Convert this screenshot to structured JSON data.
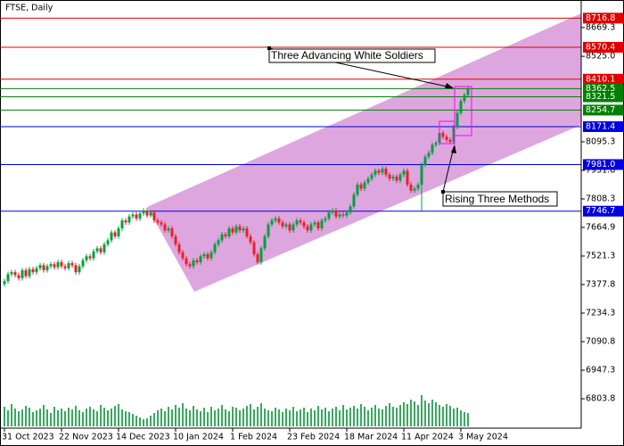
{
  "chart_data": {
    "type": "candlestick",
    "title": "FTSE, Daily",
    "categories": [
      "31 Oct 2023",
      null,
      null,
      null,
      null,
      null,
      null,
      null,
      null,
      null,
      null,
      null,
      null,
      null,
      null,
      null,
      "22 Nov 2023",
      null,
      null,
      null,
      null,
      null,
      null,
      null,
      null,
      null,
      null,
      null,
      null,
      null,
      null,
      null,
      "14 Dec 2023",
      null,
      null,
      null,
      null,
      null,
      null,
      null,
      null,
      null,
      null,
      null,
      null,
      null,
      null,
      null,
      "10 Jan 2024",
      null,
      null,
      null,
      null,
      null,
      null,
      null,
      null,
      null,
      null,
      null,
      null,
      null,
      null,
      null,
      "1 Feb 2024",
      null,
      null,
      null,
      null,
      null,
      null,
      null,
      null,
      null,
      null,
      null,
      null,
      null,
      null,
      null,
      "23 Feb 2024",
      null,
      null,
      null,
      null,
      null,
      null,
      null,
      null,
      null,
      null,
      null,
      null,
      null,
      null,
      null,
      "18 Mar 2024",
      null,
      null,
      null,
      null,
      null,
      null,
      null,
      null,
      null,
      null,
      null,
      null,
      null,
      null,
      null,
      "11 Apr 2024",
      null,
      null,
      null,
      null,
      null,
      null,
      null,
      null,
      null,
      null,
      null,
      null,
      null,
      null,
      null,
      "3 May 2024",
      null,
      null
    ],
    "open": [
      7380,
      7395,
      7430,
      7440,
      7425,
      7410,
      7450,
      7420,
      7455,
      7440,
      7460,
      7475,
      7450,
      7470,
      7480,
      7465,
      7490,
      7470,
      7460,
      7485,
      7475,
      7440,
      7470,
      7500,
      7520,
      7510,
      7545,
      7560,
      7540,
      7580,
      7600,
      7640,
      7620,
      7660,
      7700,
      7690,
      7720,
      7730,
      7710,
      7735,
      7750,
      7725,
      7740,
      7700,
      7690,
      7680,
      7650,
      7660,
      7620,
      7580,
      7540,
      7510,
      7480,
      7470,
      7500,
      7490,
      7520,
      7530,
      7510,
      7540,
      7580,
      7600,
      7630,
      7620,
      7660,
      7640,
      7670,
      7650,
      7660,
      7620,
      7590,
      7530,
      7490,
      7560,
      7620,
      7680,
      7700,
      7710,
      7690,
      7670,
      7680,
      7650,
      7680,
      7700,
      7690,
      7670,
      7650,
      7680,
      7690,
      7660,
      7700,
      7710,
      7740,
      7750,
      7720,
      7730,
      7725,
      7740,
      7770,
      7830,
      7880,
      7860,
      7890,
      7910,
      7930,
      7950,
      7940,
      7960,
      7930,
      7910,
      7920,
      7900,
      7930,
      7950,
      7880,
      7850,
      7860,
      7880,
      7980,
      8020,
      8040,
      8080,
      8090,
      8140,
      8120,
      8105,
      8095,
      8170,
      8240,
      8300,
      8330
    ],
    "high": [
      7407,
      7442,
      7452,
      7452,
      7437,
      7462,
      7462,
      7467,
      7467,
      7472,
      7487,
      7487,
      7482,
      7492,
      7492,
      7502,
      7502,
      7482,
      7497,
      7497,
      7487,
      7482,
      7512,
      7532,
      7532,
      7557,
      7572,
      7572,
      7592,
      7612,
      7652,
      7652,
      7672,
      7712,
      7712,
      7732,
      7742,
      7742,
      7747,
      7762,
      7762,
      7752,
      7752,
      7712,
      7702,
      7692,
      7672,
      7672,
      7632,
      7592,
      7552,
      7522,
      7492,
      7512,
      7512,
      7532,
      7542,
      7542,
      7552,
      7592,
      7612,
      7642,
      7642,
      7672,
      7672,
      7682,
      7682,
      7672,
      7672,
      7632,
      7602,
      7542,
      7572,
      7632,
      7692,
      7712,
      7722,
      7722,
      7702,
      7692,
      7692,
      7692,
      7712,
      7712,
      7702,
      7682,
      7692,
      7702,
      7702,
      7712,
      7722,
      7752,
      7762,
      7762,
      7742,
      7742,
      7752,
      7782,
      7842,
      7892,
      7892,
      7902,
      7922,
      7942,
      7962,
      7962,
      7972,
      7972,
      7942,
      7932,
      7932,
      7942,
      7962,
      7962,
      7892,
      7872,
      7892,
      7992,
      8032,
      8052,
      8092,
      8102,
      8152,
      8152,
      8132,
      8117,
      8182,
      8252,
      8312,
      8342,
      8372
    ],
    "low": [
      7368,
      7383,
      7418,
      7413,
      7398,
      7398,
      7408,
      7408,
      7428,
      7428,
      7448,
      7438,
      7438,
      7458,
      7453,
      7453,
      7458,
      7448,
      7448,
      7463,
      7428,
      7428,
      7458,
      7488,
      7498,
      7498,
      7533,
      7528,
      7528,
      7568,
      7588,
      7608,
      7608,
      7648,
      7678,
      7678,
      7708,
      7698,
      7698,
      7723,
      7713,
      7713,
      7688,
      7678,
      7668,
      7638,
      7638,
      7608,
      7568,
      7528,
      7498,
      7468,
      7458,
      7458,
      7478,
      7478,
      7508,
      7498,
      7498,
      7528,
      7568,
      7588,
      7608,
      7608,
      7628,
      7628,
      7638,
      7638,
      7608,
      7578,
      7518,
      7478,
      7478,
      7548,
      7608,
      7668,
      7688,
      7678,
      7658,
      7658,
      7638,
      7638,
      7668,
      7678,
      7658,
      7638,
      7638,
      7668,
      7648,
      7648,
      7688,
      7698,
      7728,
      7708,
      7708,
      7713,
      7713,
      7728,
      7758,
      7818,
      7848,
      7848,
      7878,
      7898,
      7918,
      7928,
      7928,
      7918,
      7898,
      7898,
      7888,
      7888,
      7918,
      7868,
      7838,
      7838,
      7848,
      7750,
      7968,
      8008,
      8028,
      8068,
      8078,
      8108,
      8093,
      8083,
      8083,
      8158,
      8228,
      8288,
      8318
    ],
    "close": [
      7395,
      7430,
      7440,
      7425,
      7410,
      7450,
      7420,
      7455,
      7440,
      7460,
      7475,
      7450,
      7470,
      7480,
      7465,
      7490,
      7470,
      7460,
      7485,
      7475,
      7440,
      7470,
      7500,
      7520,
      7510,
      7545,
      7560,
      7540,
      7580,
      7600,
      7640,
      7620,
      7660,
      7700,
      7690,
      7720,
      7730,
      7710,
      7735,
      7750,
      7725,
      7740,
      7700,
      7690,
      7680,
      7650,
      7660,
      7620,
      7580,
      7540,
      7510,
      7480,
      7470,
      7500,
      7490,
      7520,
      7530,
      7510,
      7540,
      7580,
      7600,
      7630,
      7620,
      7660,
      7640,
      7670,
      7650,
      7660,
      7620,
      7590,
      7530,
      7490,
      7560,
      7620,
      7680,
      7700,
      7710,
      7690,
      7670,
      7680,
      7650,
      7680,
      7700,
      7690,
      7670,
      7650,
      7680,
      7690,
      7660,
      7700,
      7710,
      7740,
      7750,
      7720,
      7730,
      7725,
      7740,
      7770,
      7830,
      7880,
      7860,
      7890,
      7910,
      7930,
      7950,
      7940,
      7960,
      7930,
      7910,
      7920,
      7900,
      7930,
      7950,
      7880,
      7850,
      7860,
      7880,
      7980,
      8020,
      8040,
      8080,
      8090,
      8140,
      8120,
      8105,
      8095,
      8170,
      8240,
      8300,
      8330,
      8360
    ],
    "volume": [
      22,
      18,
      25,
      20,
      17,
      19,
      23,
      21,
      16,
      18,
      20,
      24,
      19,
      15,
      22,
      18,
      20,
      17,
      21,
      19,
      23,
      18,
      16,
      20,
      22,
      19,
      17,
      24,
      21,
      18,
      20,
      23,
      25,
      19,
      17,
      16,
      14,
      12,
      10,
      8,
      9,
      12,
      15,
      18,
      20,
      17,
      22,
      19,
      24,
      21,
      26,
      20,
      18,
      23,
      19,
      17,
      21,
      16,
      22,
      18,
      20,
      24,
      19,
      17,
      22,
      21,
      18,
      20,
      23,
      25,
      19,
      22,
      26,
      20,
      18,
      17,
      21,
      19,
      16,
      20,
      18,
      22,
      17,
      19,
      21,
      16,
      20,
      18,
      23,
      19,
      21,
      17,
      20,
      22,
      18,
      24,
      19,
      21,
      23,
      20,
      25,
      22,
      18,
      21,
      24,
      20,
      19,
      23,
      26,
      22,
      21,
      24,
      27,
      25,
      30,
      28,
      24,
      35,
      29,
      26,
      30,
      27,
      24,
      22,
      25,
      23,
      20,
      21,
      18,
      16,
      15
    ],
    "up_color": "#00a03c",
    "down_color": "#e8202a",
    "volume_color": "#3aa860",
    "ylim": [
      6656,
      8808
    ],
    "yticks": [
      8669.3,
      {
        "value": 8525,
        "label": "8525.0"
      },
      8095.3,
      7951.8,
      7808.3,
      7664.9,
      7521.3,
      7377.8,
      7234.3,
      7090.8,
      6947.3,
      6803.8
    ],
    "levels": [
      {
        "value": 8716.8,
        "color": "#e00000"
      },
      {
        "value": 8570.4,
        "color": "#e00000"
      },
      {
        "value": 8410.1,
        "color": "#e00000"
      },
      {
        "value": 8362.5,
        "color": "#008000"
      },
      {
        "value": 8321.5,
        "color": "#008000"
      },
      {
        "value": 8254.7,
        "color": "#008000"
      },
      {
        "value": 8171.4,
        "color": "#0000e0"
      },
      {
        "value": 7981,
        "label": "7981.0",
        "color": "#0000e0"
      },
      {
        "value": 7746.7,
        "color": "#0000e0"
      }
    ],
    "annotations": [
      {
        "text": "Three Advancing White Soldiers"
      },
      {
        "text": "Rising Three Methods"
      }
    ]
  }
}
